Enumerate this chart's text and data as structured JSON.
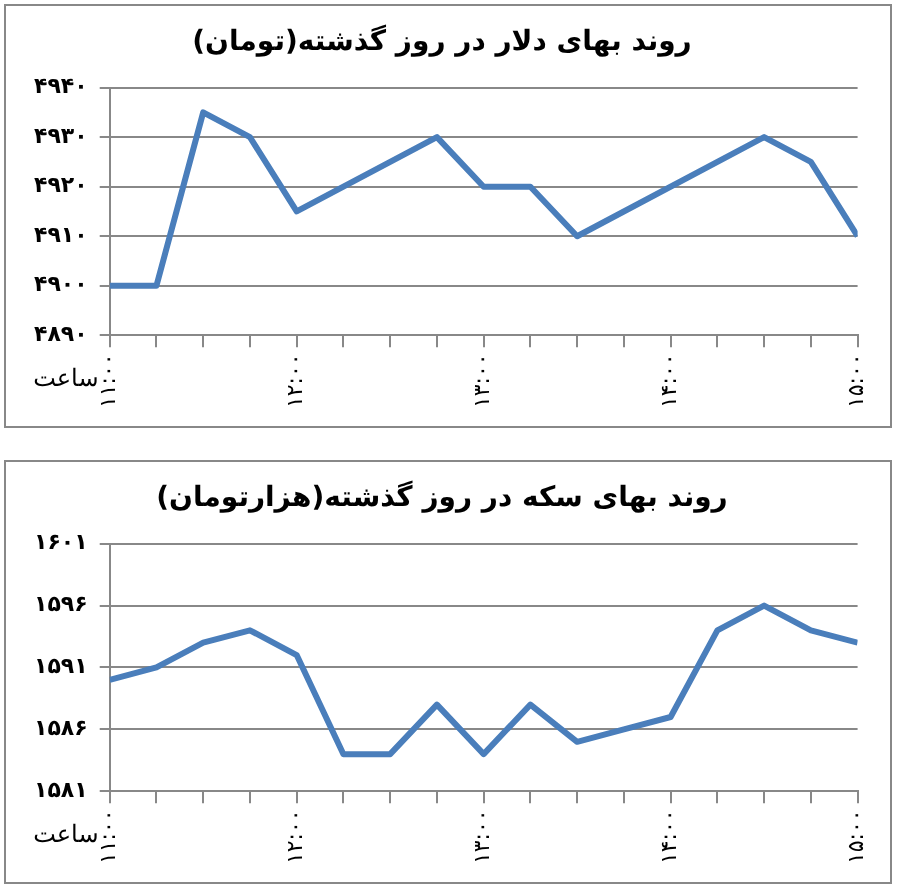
{
  "chart_data": [
    {
      "type": "line",
      "title": "روند بهای دلار در روز گذشته(تومان)",
      "xlabel": "ساعت",
      "x": [
        11,
        11.25,
        11.5,
        11.75,
        12,
        12.75,
        13,
        13.25,
        13.5,
        14.5,
        14.75,
        15
      ],
      "series": [
        {
          "color": "#4a7ebb",
          "values": [
            4900,
            4900,
            4935,
            4930,
            4915,
            4930,
            4920,
            4920,
            4910,
            4930,
            4925,
            4910
          ]
        }
      ],
      "xlim": [
        11,
        15
      ],
      "xticks": [
        {
          "value": 11,
          "label": "۱۱:۰۰"
        },
        {
          "value": 11.25,
          "label": null
        },
        {
          "value": 11.5,
          "label": null
        },
        {
          "value": 11.75,
          "label": null
        },
        {
          "value": 12,
          "label": "۱۲:۰۰"
        },
        {
          "value": 12.25,
          "label": null
        },
        {
          "value": 12.5,
          "label": null
        },
        {
          "value": 12.75,
          "label": null
        },
        {
          "value": 13,
          "label": "۱۳:۰۰"
        },
        {
          "value": 13.25,
          "label": null
        },
        {
          "value": 13.5,
          "label": null
        },
        {
          "value": 13.75,
          "label": null
        },
        {
          "value": 14,
          "label": "۱۴:۰۰"
        },
        {
          "value": 14.25,
          "label": null
        },
        {
          "value": 14.5,
          "label": null
        },
        {
          "value": 14.75,
          "label": null
        },
        {
          "value": 15,
          "label": "۱۵:۰۰"
        }
      ],
      "ylim": [
        4890,
        4940
      ],
      "yticks": [
        {
          "value": 4890,
          "label": "۴۸۹۰"
        },
        {
          "value": 4900,
          "label": "۴۹۰۰"
        },
        {
          "value": 4910,
          "label": "۴۹۱۰"
        },
        {
          "value": 4920,
          "label": "۴۹۲۰"
        },
        {
          "value": 4930,
          "label": "۴۹۳۰"
        },
        {
          "value": 4940,
          "label": "۴۹۴۰"
        }
      ],
      "grid": "y",
      "legend": false,
      "marker": "none",
      "line_style": "solid"
    },
    {
      "type": "line",
      "title": "روند بهای سکه در روز گذشته(هزارتومان)",
      "xlabel": "ساعت",
      "x": [
        11,
        11.25,
        11.5,
        11.75,
        12,
        12.25,
        12.5,
        12.75,
        13,
        13.25,
        13.5,
        13.75,
        14,
        14.25,
        14.5,
        14.75,
        15
      ],
      "series": [
        {
          "color": "#4a7ebb",
          "values": [
            1590,
            1591,
            1593,
            1594,
            1592,
            1584,
            1584,
            1588,
            1584,
            1588,
            1585,
            1586,
            1587,
            1594,
            1596,
            1594,
            1593
          ]
        }
      ],
      "xlim": [
        11,
        15
      ],
      "xticks": [
        {
          "value": 11,
          "label": "۱۱:۰۰"
        },
        {
          "value": 11.25,
          "label": null
        },
        {
          "value": 11.5,
          "label": null
        },
        {
          "value": 11.75,
          "label": null
        },
        {
          "value": 12,
          "label": "۱۲:۰۰"
        },
        {
          "value": 12.25,
          "label": null
        },
        {
          "value": 12.5,
          "label": null
        },
        {
          "value": 12.75,
          "label": null
        },
        {
          "value": 13,
          "label": "۱۳:۰۰"
        },
        {
          "value": 13.25,
          "label": null
        },
        {
          "value": 13.5,
          "label": null
        },
        {
          "value": 13.75,
          "label": null
        },
        {
          "value": 14,
          "label": "۱۴:۰۰"
        },
        {
          "value": 14.25,
          "label": null
        },
        {
          "value": 14.5,
          "label": null
        },
        {
          "value": 14.75,
          "label": null
        },
        {
          "value": 15,
          "label": "۱۵:۰۰"
        }
      ],
      "ylim": [
        1581,
        1601
      ],
      "yticks": [
        {
          "value": 1581,
          "label": "۱۵۸۱"
        },
        {
          "value": 1586,
          "label": "۱۵۸۶"
        },
        {
          "value": 1591,
          "label": "۱۵۹۱"
        },
        {
          "value": 1596,
          "label": "۱۵۹۶"
        },
        {
          "value": 1601,
          "label": "۱۶۰۱"
        }
      ],
      "grid": "y",
      "legend": false,
      "marker": "none",
      "line_style": "solid"
    }
  ]
}
